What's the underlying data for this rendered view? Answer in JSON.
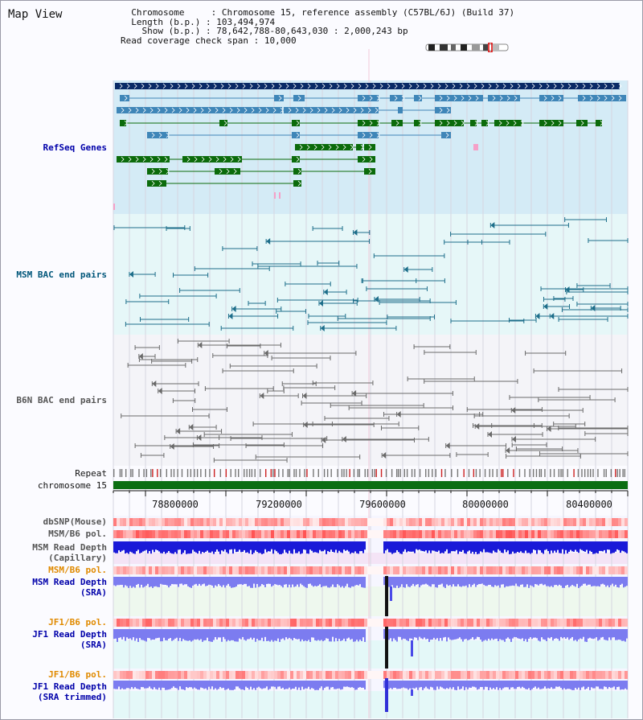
{
  "window": {
    "title": "Map View"
  },
  "header": {
    "chromosome_label": "Chromosome",
    "chromosome_value": "Chromosome 15, reference assembly (C57BL/6J) (Build 37)",
    "length_label": "Length (b.p.)",
    "length_value": "103,494,974",
    "show_label": "Show (b.p.)",
    "show_value": "78,642,788-80,643,030 : 2,000,243 bp",
    "coverage_label": "Read coverage check span",
    "coverage_value": "10,000"
  },
  "tracks": {
    "refseq": "RefSeq Genes",
    "msm_bac": "MSM BAC end pairs",
    "b6n_bac": "B6N BAC end pairs",
    "repeat": "Repeat",
    "chromosome": "chromosome 15",
    "dbsnp": "dbSNP(Mouse)",
    "msm_b6_pol_1": "MSM/B6 pol.",
    "msm_depth_cap_1": "MSM Read Depth",
    "msm_depth_cap_2": "(Capillary)",
    "msm_b6_pol_2": "MSM/B6 pol.",
    "msm_depth_sra_1": "MSM Read Depth",
    "msm_depth_sra_2": "(SRA)",
    "jf1_b6_pol_1": "JF1/B6 pol.",
    "jf1_depth_sra_1": "JF1 Read Depth",
    "jf1_depth_sra_2": "(SRA)",
    "jf1_b6_pol_2": "JF1/B6 pol.",
    "jf1_depth_trim_1": "JF1 Read Depth",
    "jf1_depth_trim_2": "(SRA trimmed)"
  },
  "axis": {
    "ticks": [
      "78800000",
      "79200000",
      "79600000",
      "80000000",
      "80400000"
    ]
  },
  "colors": {
    "gene_dark": "#0a2a66",
    "gene_mid": "#3f86b8",
    "gene_green": "#0b6b0b",
    "chrom_green": "#0b6e12",
    "bac_msm": "#1d6e8a",
    "bac_b6n": "#6a6a6a",
    "depth_blue": "#1a1ad8",
    "depth_light": "#7c7cf0",
    "label_blue": "#0000aa",
    "label_teal": "#00567a",
    "label_orange": "#e08a00",
    "label_gray": "#555555"
  }
}
